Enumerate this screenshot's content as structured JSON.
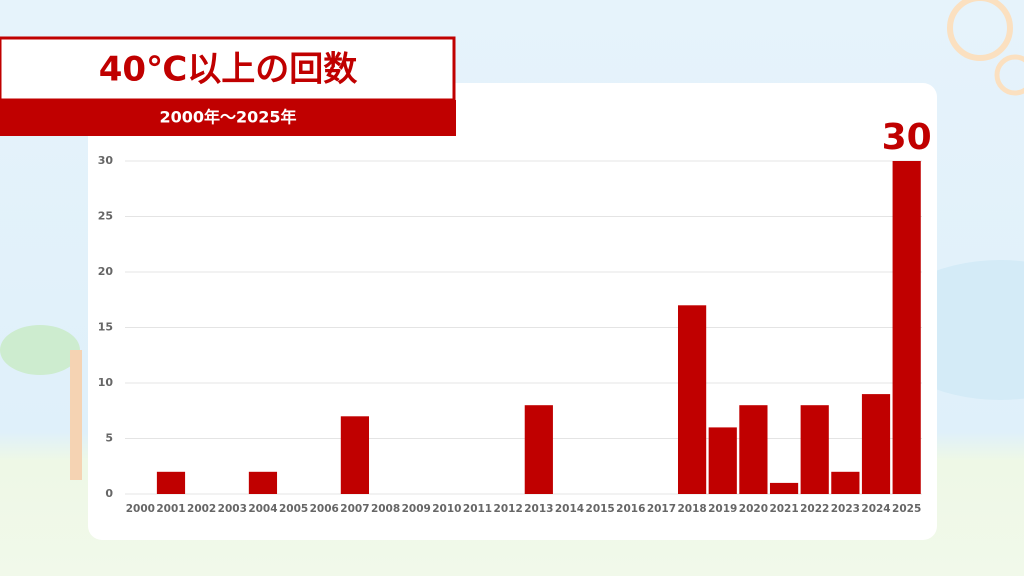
{
  "chart_data": {
    "type": "bar",
    "title": "40℃以上の回数",
    "subtitle": "2000年〜2025年",
    "categories": [
      "2000",
      "2001",
      "2002",
      "2003",
      "2004",
      "2005",
      "2006",
      "2007",
      "2008",
      "2009",
      "2010",
      "2011",
      "2012",
      "2013",
      "2014",
      "2015",
      "2016",
      "2017",
      "2018",
      "2019",
      "2020",
      "2021",
      "2022",
      "2023",
      "2024",
      "2025"
    ],
    "values": [
      0,
      2,
      0,
      0,
      2,
      0,
      0,
      7,
      0,
      0,
      0,
      0,
      0,
      8,
      0,
      0,
      0,
      0,
      17,
      6,
      8,
      1,
      8,
      2,
      9,
      30
    ],
    "color": "#c00000",
    "ylim": [
      0,
      30
    ],
    "yticks": [
      0,
      5,
      10,
      15,
      20,
      25,
      30
    ],
    "grid": true,
    "labeled_index": 25
  }
}
